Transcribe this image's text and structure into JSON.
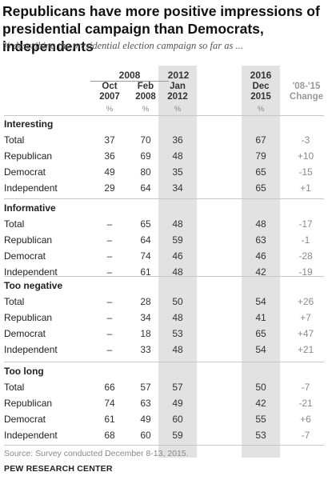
{
  "title": "Republicans have more positive impressions of presidential campaign than Democrats, independents",
  "subtitle": "% describing the presidential election campaign so far as ...",
  "header": {
    "years": [
      "2008",
      "2012",
      "2016"
    ],
    "columns": [
      {
        "line1": "Oct",
        "line2": "2007",
        "unit": "%"
      },
      {
        "line1": "Feb",
        "line2": "2008",
        "unit": "%"
      },
      {
        "line1": "Jan",
        "line2": "2012",
        "unit": "%"
      },
      {
        "line1": "Dec",
        "line2": "2015",
        "unit": "%"
      }
    ],
    "change": {
      "line1": "'08-'15",
      "line2": "Change"
    }
  },
  "chart_data": {
    "type": "table",
    "columns": [
      "Oct 2007",
      "Feb 2008",
      "Jan 2012",
      "Dec 2015",
      "'08-'15 Change"
    ],
    "sections": [
      {
        "title": "Interesting",
        "rows": [
          {
            "label": "Total",
            "values": [
              "37",
              "70",
              "36",
              "67",
              "-3"
            ]
          },
          {
            "label": "Republican",
            "values": [
              "36",
              "69",
              "48",
              "79",
              "+10"
            ]
          },
          {
            "label": "Democrat",
            "values": [
              "49",
              "80",
              "35",
              "65",
              "-15"
            ]
          },
          {
            "label": "Independent",
            "values": [
              "29",
              "64",
              "34",
              "65",
              "+1"
            ]
          }
        ]
      },
      {
        "title": "Informative",
        "rows": [
          {
            "label": "Total",
            "values": [
              "–",
              "65",
              "48",
              "48",
              "-17"
            ]
          },
          {
            "label": "Republican",
            "values": [
              "–",
              "64",
              "59",
              "63",
              "-1"
            ]
          },
          {
            "label": "Democrat",
            "values": [
              "–",
              "74",
              "46",
              "46",
              "-28"
            ]
          },
          {
            "label": "Independent",
            "values": [
              "–",
              "61",
              "48",
              "42",
              "-19"
            ]
          }
        ]
      },
      {
        "title": "Too negative",
        "rows": [
          {
            "label": "Total",
            "values": [
              "–",
              "28",
              "50",
              "54",
              "+26"
            ]
          },
          {
            "label": "Republican",
            "values": [
              "–",
              "34",
              "48",
              "41",
              "+7"
            ]
          },
          {
            "label": "Democrat",
            "values": [
              "–",
              "18",
              "53",
              "65",
              "+47"
            ]
          },
          {
            "label": "Independent",
            "values": [
              "–",
              "33",
              "48",
              "54",
              "+21"
            ]
          }
        ]
      },
      {
        "title": "Too long",
        "rows": [
          {
            "label": "Total",
            "values": [
              "66",
              "57",
              "57",
              "50",
              "-7"
            ]
          },
          {
            "label": "Republican",
            "values": [
              "74",
              "63",
              "49",
              "42",
              "-21"
            ]
          },
          {
            "label": "Democrat",
            "values": [
              "61",
              "49",
              "60",
              "55",
              "+6"
            ]
          },
          {
            "label": "Independent",
            "values": [
              "68",
              "60",
              "59",
              "53",
              "-7"
            ]
          }
        ]
      }
    ]
  },
  "source": "Source: Survey conducted December 8-13, 2015.",
  "brand": "PEW RESEARCH CENTER",
  "colors": {
    "shade": "#e2e2e2",
    "rule": "#c8c8c8",
    "change_text": "#8a8a8a"
  }
}
